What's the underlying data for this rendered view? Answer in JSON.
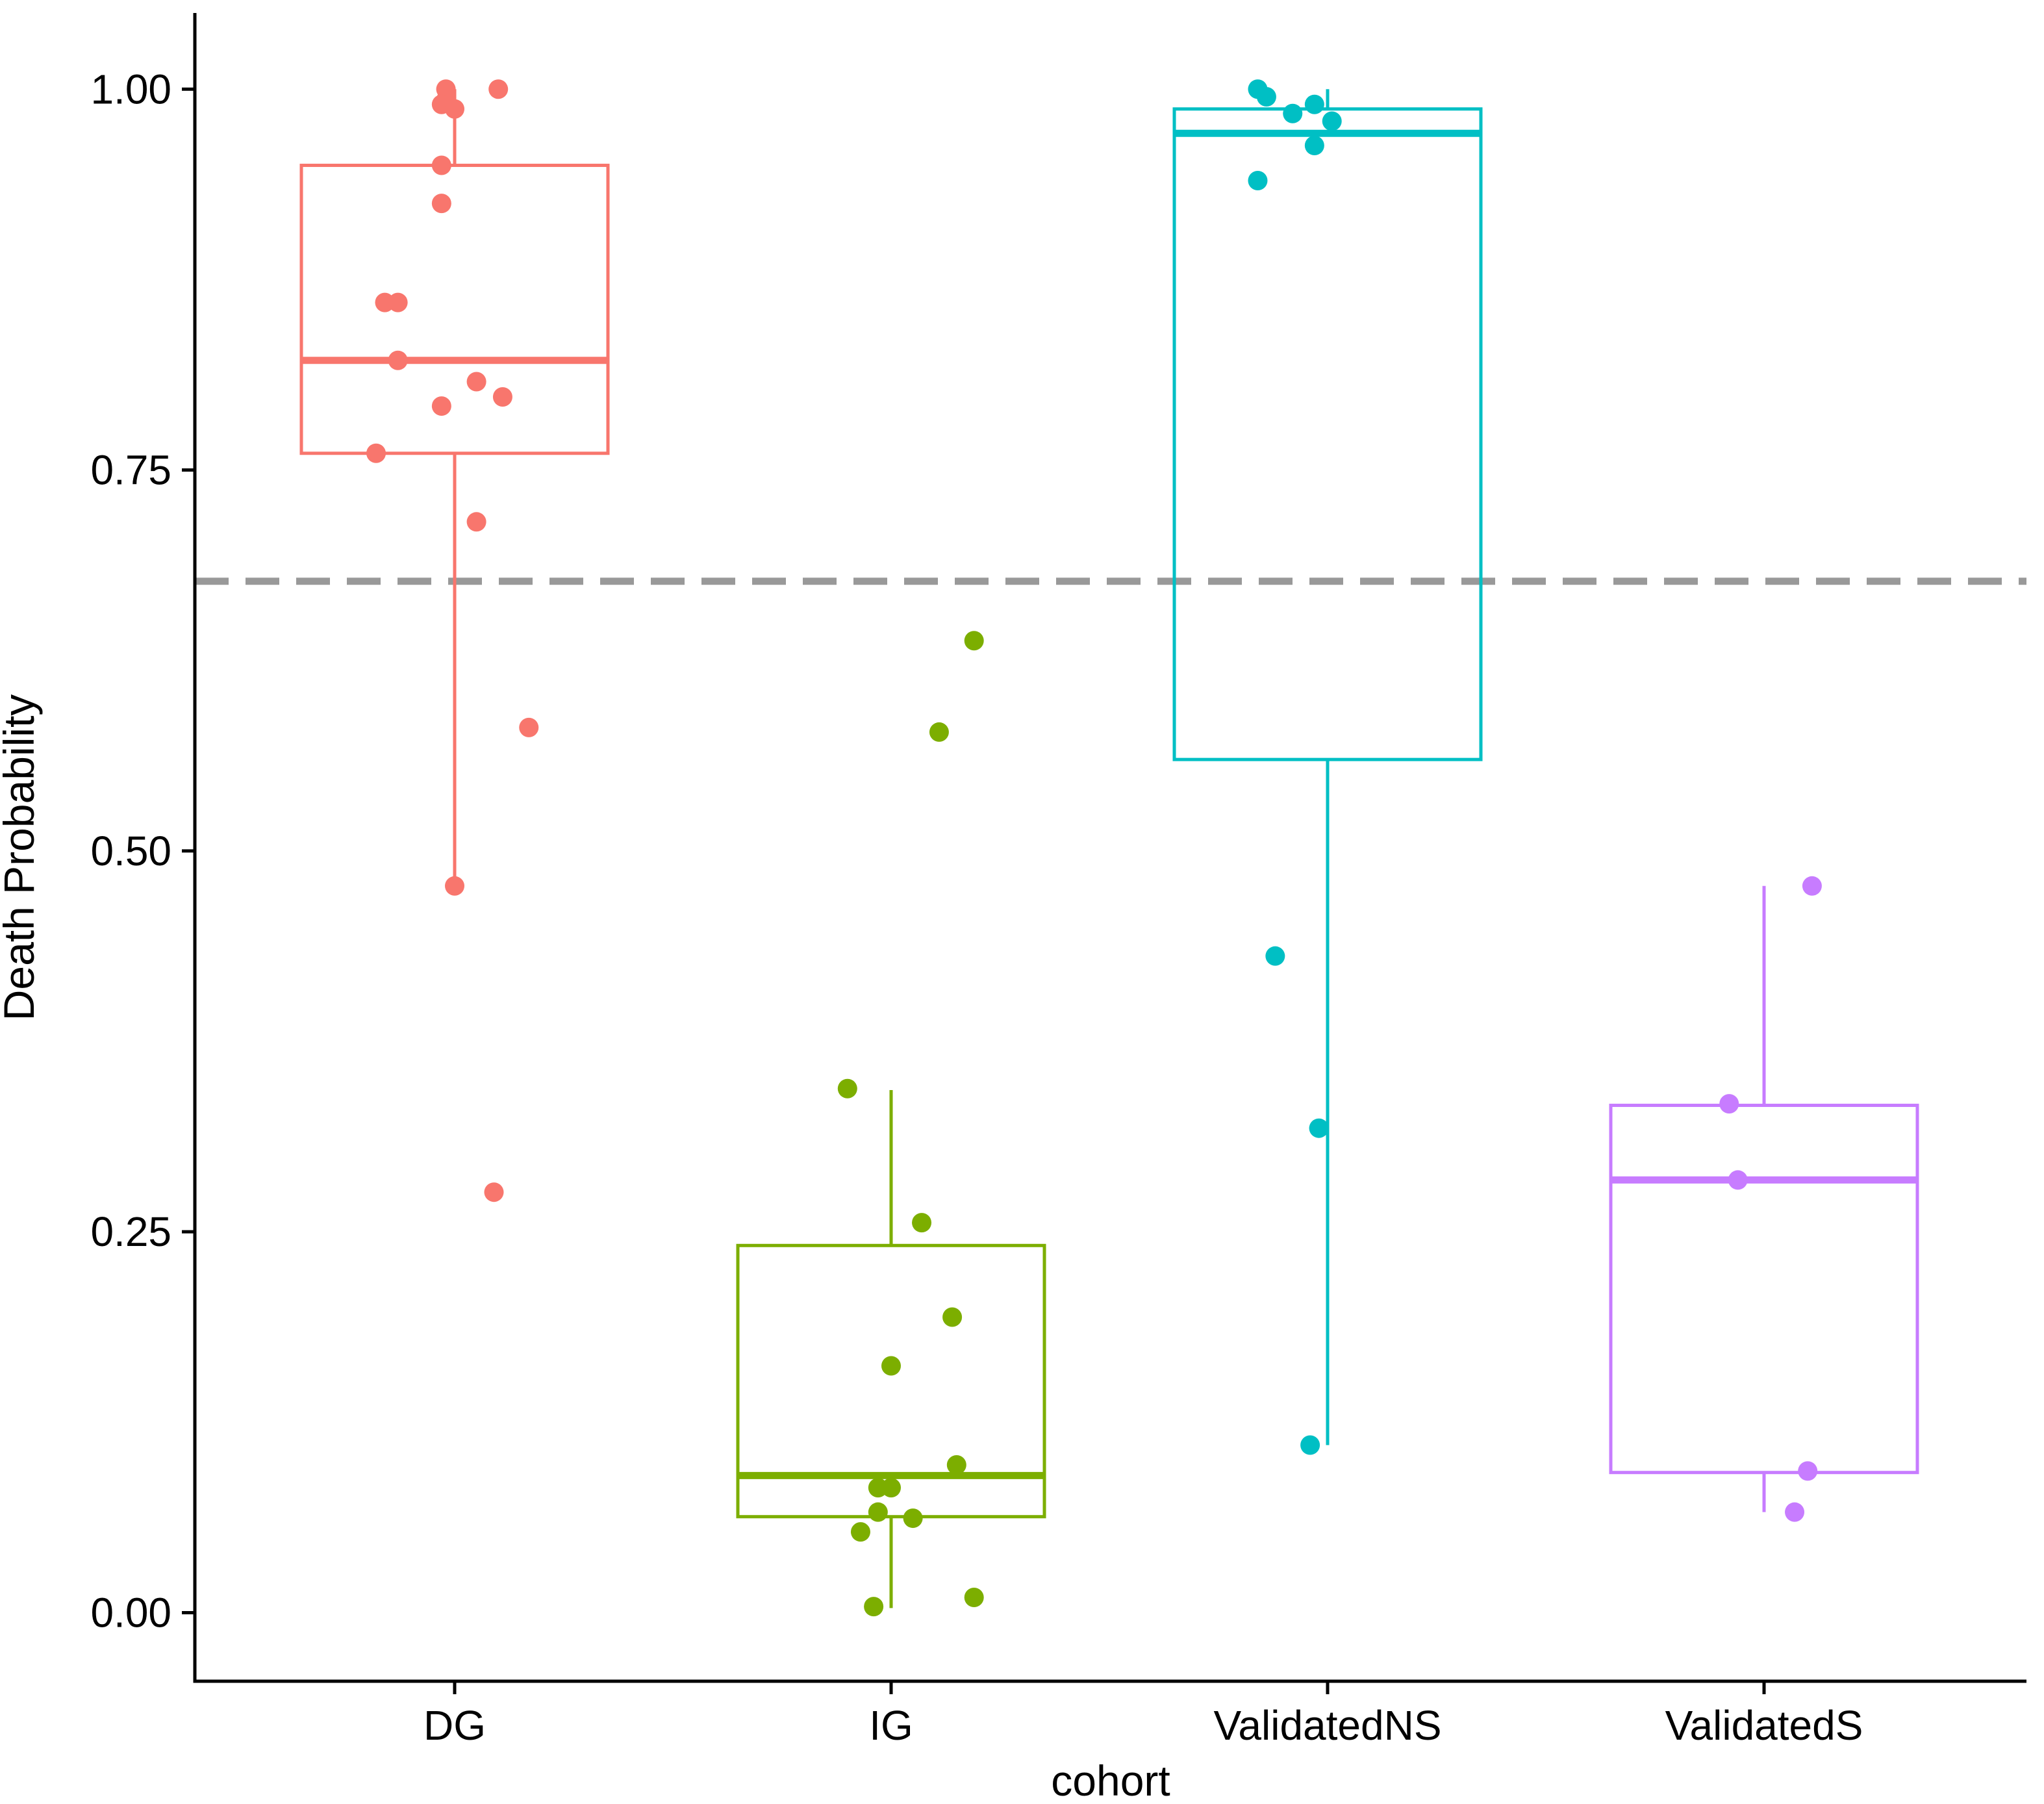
{
  "chart_data": {
    "type": "box",
    "title": "",
    "xlabel": "cohort",
    "ylabel": "Death Probability",
    "ylim": [
      -0.045,
      1.05
    ],
    "yticks": [
      0.0,
      0.25,
      0.5,
      0.75,
      1.0
    ],
    "ytick_labels": [
      "0.00",
      "0.25",
      "0.50",
      "0.75",
      "1.00"
    ],
    "grid": false,
    "legend": "none",
    "reference_line": {
      "y": 0.677,
      "style": "dashed",
      "color": "#999999"
    },
    "categories": [
      "DG",
      "IG",
      "ValidatedNS",
      "ValidatedS"
    ],
    "series": [
      {
        "name": "DG",
        "color": "#F8766D",
        "box": {
          "whisker_low": 0.477,
          "q1": 0.761,
          "median": 0.822,
          "q3": 0.95,
          "whisker_high": 1.0
        },
        "points": [
          {
            "dx": -0.02,
            "y": 1.0
          },
          {
            "dx": 0.1,
            "y": 1.0
          },
          {
            "dx": -0.02,
            "y": 0.993
          },
          {
            "dx": -0.03,
            "y": 0.99
          },
          {
            "dx": 0.0,
            "y": 0.987
          },
          {
            "dx": -0.03,
            "y": 0.95
          },
          {
            "dx": -0.03,
            "y": 0.925
          },
          {
            "dx": -0.16,
            "y": 0.86
          },
          {
            "dx": -0.13,
            "y": 0.86
          },
          {
            "dx": -0.13,
            "y": 0.822
          },
          {
            "dx": 0.05,
            "y": 0.808
          },
          {
            "dx": 0.11,
            "y": 0.798
          },
          {
            "dx": -0.03,
            "y": 0.792
          },
          {
            "dx": -0.18,
            "y": 0.761
          },
          {
            "dx": 0.05,
            "y": 0.716
          },
          {
            "dx": 0.17,
            "y": 0.581
          },
          {
            "dx": 0.0,
            "y": 0.477
          },
          {
            "dx": 0.09,
            "y": 0.276
          }
        ]
      },
      {
        "name": "IG",
        "color": "#7CAE00",
        "box": {
          "whisker_low": 0.003,
          "q1": 0.063,
          "median": 0.09,
          "q3": 0.241,
          "whisker_high": 0.343
        },
        "points": [
          {
            "dx": 0.19,
            "y": 0.638
          },
          {
            "dx": 0.11,
            "y": 0.578
          },
          {
            "dx": -0.1,
            "y": 0.344
          },
          {
            "dx": 0.07,
            "y": 0.256
          },
          {
            "dx": 0.14,
            "y": 0.194
          },
          {
            "dx": 0.0,
            "y": 0.162
          },
          {
            "dx": 0.15,
            "y": 0.097
          },
          {
            "dx": -0.03,
            "y": 0.082
          },
          {
            "dx": 0.0,
            "y": 0.082
          },
          {
            "dx": -0.03,
            "y": 0.066
          },
          {
            "dx": 0.05,
            "y": 0.062
          },
          {
            "dx": -0.07,
            "y": 0.053
          },
          {
            "dx": 0.19,
            "y": 0.01
          },
          {
            "dx": -0.04,
            "y": 0.004
          }
        ]
      },
      {
        "name": "ValidatedNS",
        "color": "#00BFC4",
        "box": {
          "whisker_low": 0.11,
          "q1": 0.56,
          "median": 0.971,
          "q3": 0.987,
          "whisker_high": 1.0
        },
        "points": [
          {
            "dx": -0.16,
            "y": 1.0
          },
          {
            "dx": -0.14,
            "y": 0.995
          },
          {
            "dx": -0.03,
            "y": 0.99
          },
          {
            "dx": -0.08,
            "y": 0.984
          },
          {
            "dx": 0.01,
            "y": 0.979
          },
          {
            "dx": -0.03,
            "y": 0.963
          },
          {
            "dx": -0.16,
            "y": 0.94
          },
          {
            "dx": -0.12,
            "y": 0.431
          },
          {
            "dx": -0.02,
            "y": 0.318
          },
          {
            "dx": -0.04,
            "y": 0.11
          }
        ]
      },
      {
        "name": "ValidatedS",
        "color": "#C77CFF",
        "box": {
          "whisker_low": 0.066,
          "q1": 0.092,
          "median": 0.284,
          "q3": 0.333,
          "whisker_high": 0.477
        },
        "points": [
          {
            "dx": 0.11,
            "y": 0.477
          },
          {
            "dx": -0.08,
            "y": 0.334
          },
          {
            "dx": -0.06,
            "y": 0.284
          },
          {
            "dx": 0.1,
            "y": 0.093
          },
          {
            "dx": 0.07,
            "y": 0.066
          }
        ]
      }
    ]
  }
}
